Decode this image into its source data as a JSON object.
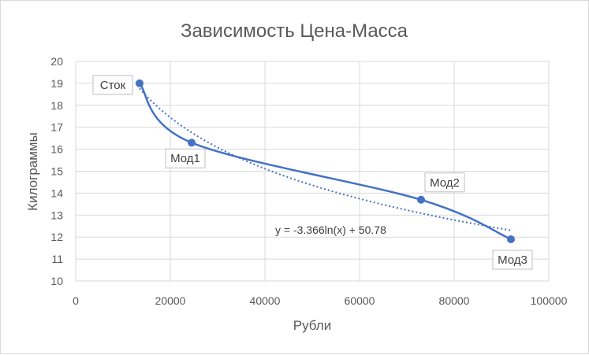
{
  "chart_data": {
    "type": "scatter",
    "title": "Зависимость Цена-Масса",
    "xlabel": "Рубли",
    "ylabel": "Килограммы",
    "xlim": [
      0,
      100000
    ],
    "ylim": [
      10,
      20
    ],
    "xticks": [
      0,
      20000,
      40000,
      60000,
      80000,
      100000
    ],
    "yticks": [
      10,
      11,
      12,
      13,
      14,
      15,
      16,
      17,
      18,
      19,
      20
    ],
    "grid": true,
    "series": [
      {
        "color": "#4472c4",
        "points": [
          {
            "x": 13500,
            "y": 19.0,
            "label": "Сток"
          },
          {
            "x": 24500,
            "y": 16.3,
            "label": "Мод1"
          },
          {
            "x": 73000,
            "y": 13.7,
            "label": "Мод2"
          },
          {
            "x": 92000,
            "y": 11.9,
            "label": "Мод3"
          }
        ]
      }
    ],
    "trendline": {
      "type": "logarithmic",
      "equation": "y = -3.366ln(x) + 50.78",
      "a": -3.366,
      "b": 50.78,
      "color": "#4472c4"
    }
  }
}
